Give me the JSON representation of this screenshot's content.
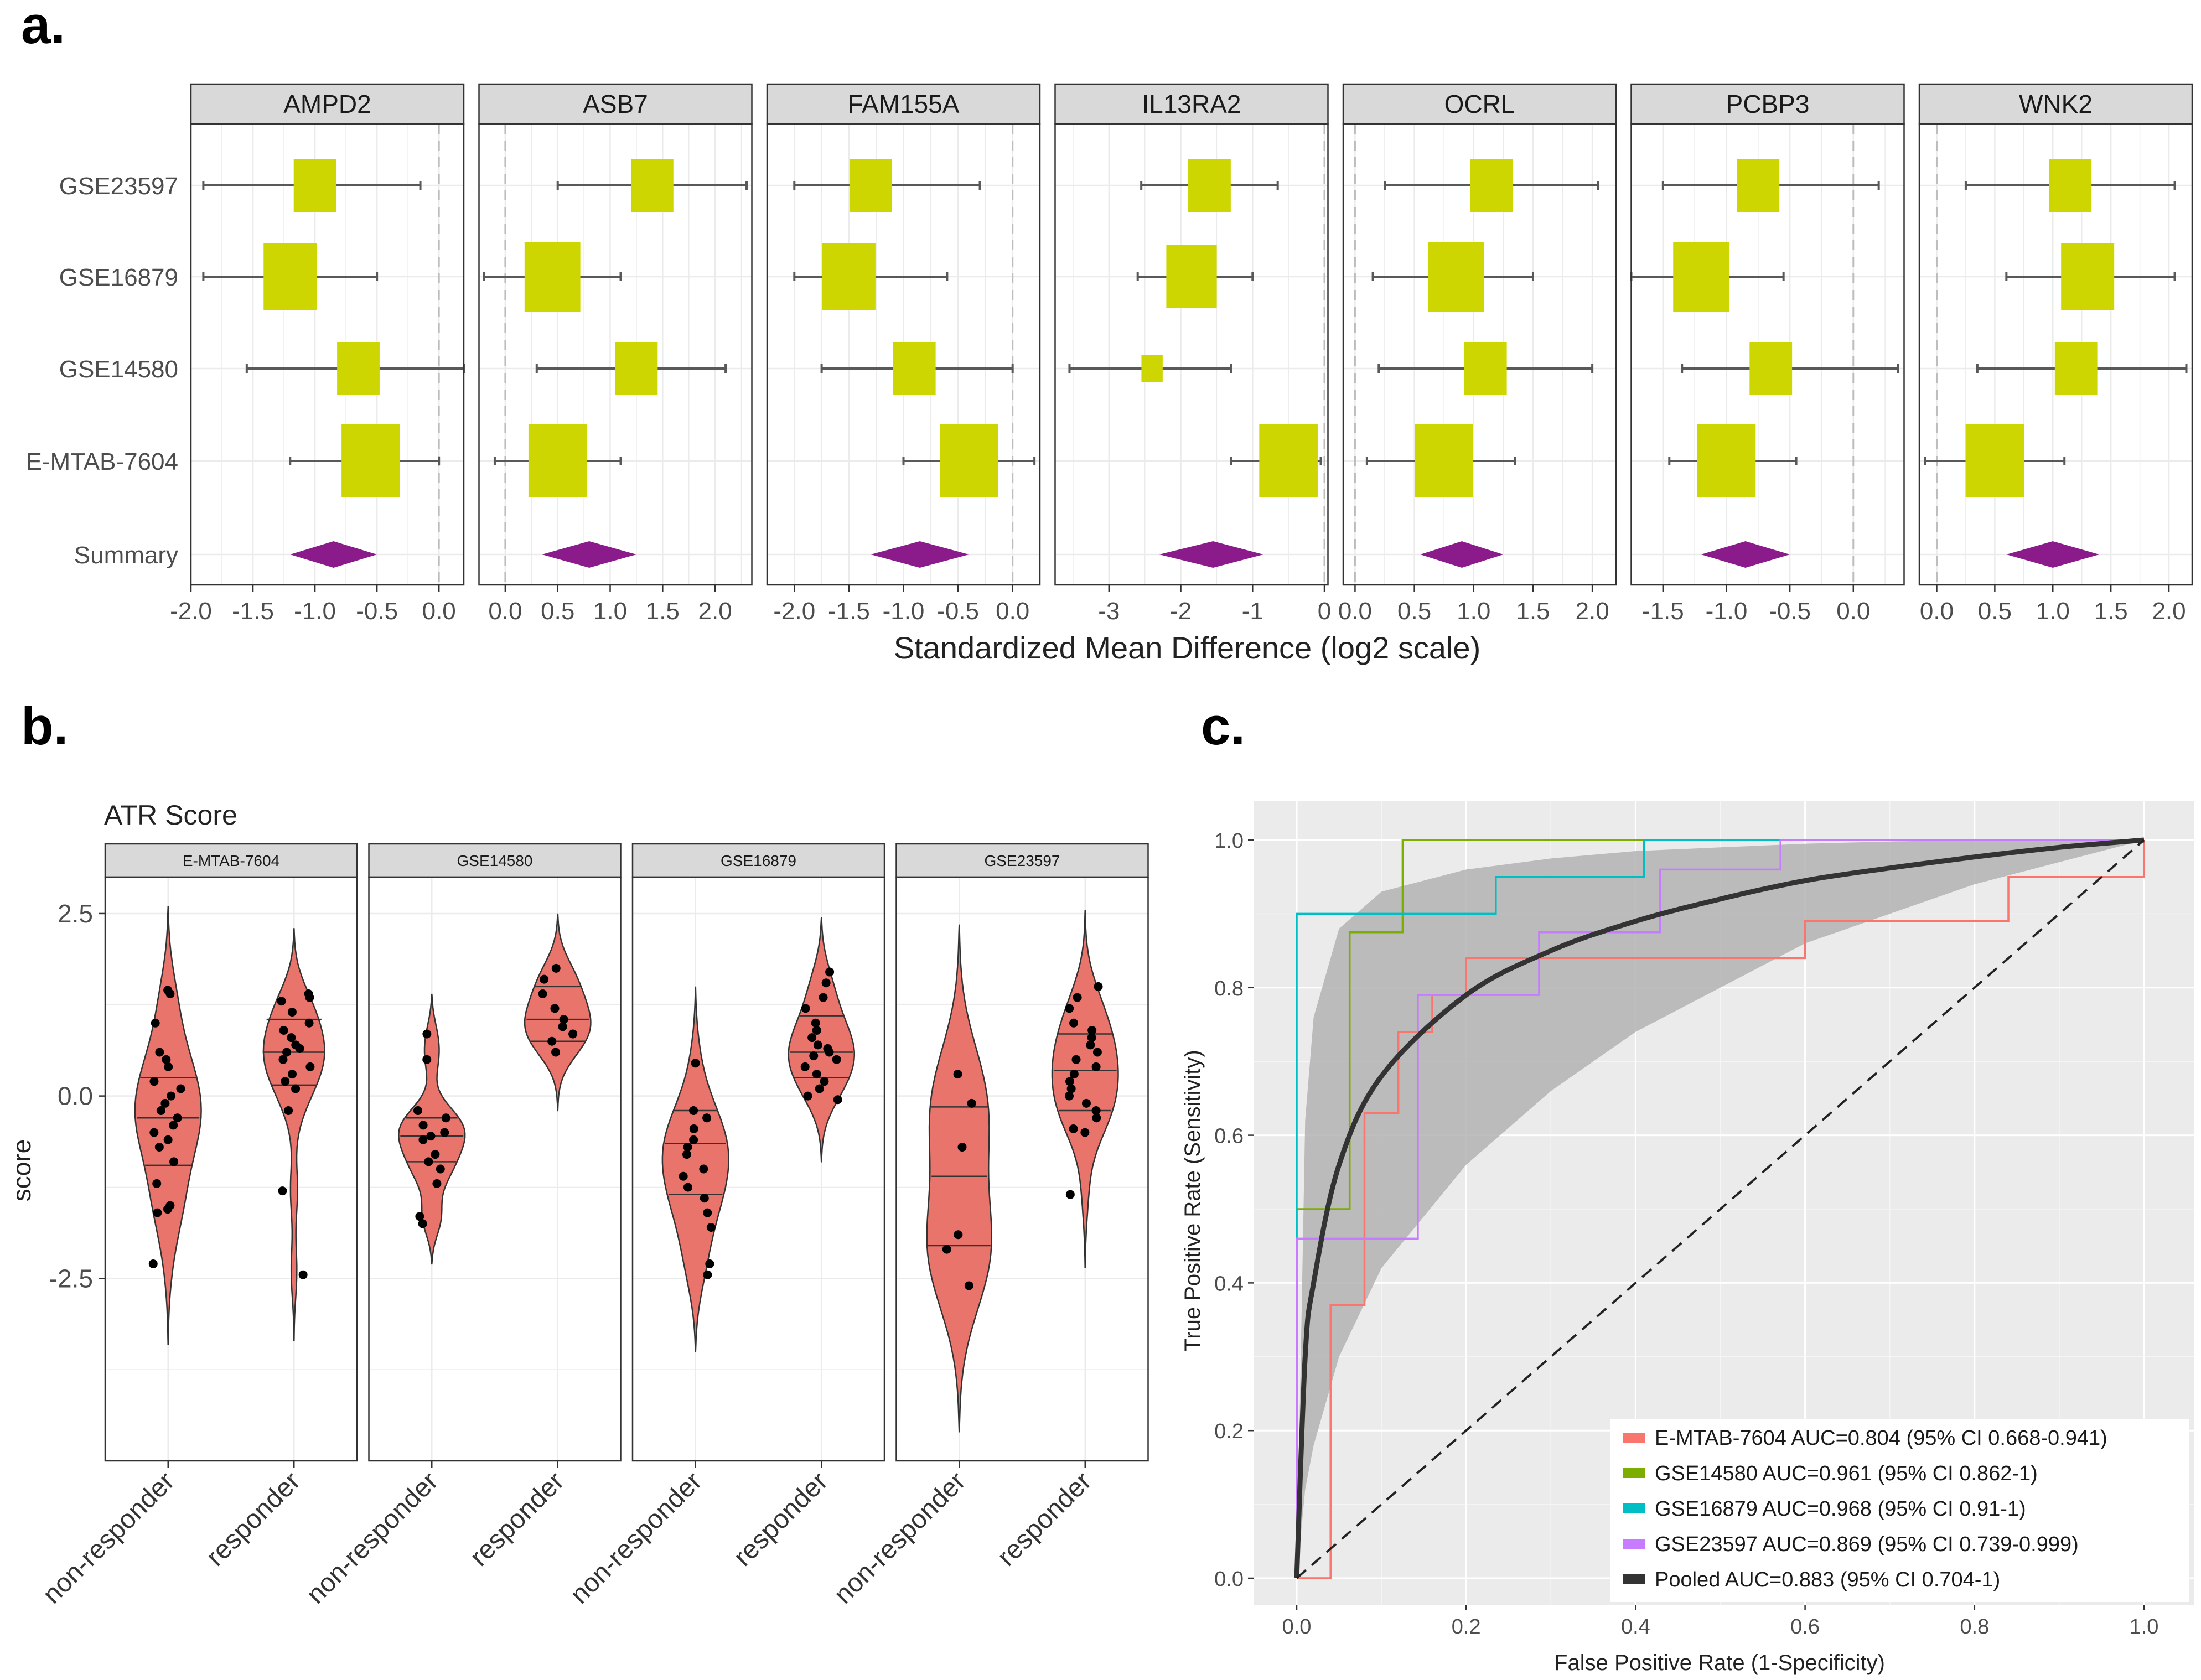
{
  "colors": {
    "square": "#cdd600",
    "diamond": "#8b1a8b",
    "violin": "#e8746c",
    "strip": "#d9d9d9",
    "roc_panel_bg": "#ebebeb",
    "ci_band": "#b3b3b3",
    "series_emtab": "#f8766d",
    "series_gse14580": "#7cae00",
    "series_gse16879": "#00bfc4",
    "series_gse23597": "#c77cff",
    "series_pooled": "#333333"
  },
  "panel_a": {
    "letter": "a.",
    "xlabel": "Standardized Mean Difference (log2 scale)",
    "rows": [
      "GSE23597",
      "GSE16879",
      "GSE14580",
      "E-MTAB-7604",
      "Summary"
    ]
  },
  "panel_b": {
    "letter": "b.",
    "title": "ATR Score",
    "ylabel": "score"
  },
  "panel_c": {
    "letter": "c.",
    "xlabel": "False Positive Rate (1-Specificity)",
    "ylabel": "True Positive Rate (Sensitivity)"
  },
  "chart_data": [
    {
      "type": "forest",
      "title": "",
      "xlabel": "Standardized Mean Difference (log2 scale)",
      "rows": [
        "GSE23597",
        "GSE16879",
        "GSE14580",
        "E-MTAB-7604",
        "Summary"
      ],
      "facets": [
        {
          "name": "AMPD2",
          "xlim": [
            -2.0,
            0.2
          ],
          "ticks": [
            -2.0,
            -1.5,
            -1.0,
            -0.5,
            0.0
          ],
          "tick_labels": [
            "-2.0",
            "-1.5",
            "-1.0",
            "-0.5",
            "0.0"
          ],
          "studies": [
            {
              "est": -1.0,
              "lo": -1.9,
              "hi": -0.15,
              "weight": 0.8
            },
            {
              "est": -1.2,
              "lo": -1.9,
              "hi": -0.5,
              "weight": 1.0
            },
            {
              "est": -0.65,
              "lo": -1.55,
              "hi": 0.2,
              "weight": 0.8
            },
            {
              "est": -0.55,
              "lo": -1.2,
              "hi": 0.0,
              "weight": 1.1
            }
          ],
          "summary": {
            "est": -0.85,
            "lo": -1.2,
            "hi": -0.5
          }
        },
        {
          "name": "ASB7",
          "xlim": [
            -0.25,
            2.35
          ],
          "ticks": [
            0.0,
            0.5,
            1.0,
            1.5,
            2.0
          ],
          "tick_labels": [
            "0.0",
            "0.5",
            "1.0",
            "1.5",
            "2.0"
          ],
          "studies": [
            {
              "est": 1.4,
              "lo": 0.5,
              "hi": 2.3,
              "weight": 0.8
            },
            {
              "est": 0.45,
              "lo": -0.2,
              "hi": 1.1,
              "weight": 1.05
            },
            {
              "est": 1.25,
              "lo": 0.3,
              "hi": 2.1,
              "weight": 0.8
            },
            {
              "est": 0.5,
              "lo": -0.1,
              "hi": 1.1,
              "weight": 1.1
            }
          ],
          "summary": {
            "est": 0.8,
            "lo": 0.35,
            "hi": 1.25
          }
        },
        {
          "name": "FAM155A",
          "xlim": [
            -2.25,
            0.25
          ],
          "ticks": [
            -2.0,
            -1.5,
            -1.0,
            -0.5,
            0.0
          ],
          "tick_labels": [
            "-2.0",
            "-1.5",
            "-1.0",
            "-0.5",
            "0.0"
          ],
          "studies": [
            {
              "est": -1.3,
              "lo": -2.0,
              "hi": -0.3,
              "weight": 0.8
            },
            {
              "est": -1.5,
              "lo": -2.0,
              "hi": -0.6,
              "weight": 1.0
            },
            {
              "est": -0.9,
              "lo": -1.75,
              "hi": 0.0,
              "weight": 0.8
            },
            {
              "est": -0.4,
              "lo": -1.0,
              "hi": 0.2,
              "weight": 1.1
            }
          ],
          "summary": {
            "est": -0.85,
            "lo": -1.3,
            "hi": -0.4
          }
        },
        {
          "name": "IL13RA2",
          "xlim": [
            -3.75,
            0.05
          ],
          "ticks": [
            -3,
            -2,
            -1,
            0
          ],
          "tick_labels": [
            "-3",
            "-2",
            "-1",
            "0"
          ],
          "studies": [
            {
              "est": -1.6,
              "lo": -2.55,
              "hi": -0.65,
              "weight": 0.8
            },
            {
              "est": -1.85,
              "lo": -2.6,
              "hi": -1.0,
              "weight": 0.95
            },
            {
              "est": -2.4,
              "lo": -3.55,
              "hi": -1.3,
              "weight": 0.4
            },
            {
              "est": -0.5,
              "lo": -1.3,
              "hi": -0.05,
              "weight": 1.1
            }
          ],
          "summary": {
            "est": -1.55,
            "lo": -2.3,
            "hi": -0.85
          }
        },
        {
          "name": "OCRL",
          "xlim": [
            -0.1,
            2.2
          ],
          "ticks": [
            0.0,
            0.5,
            1.0,
            1.5,
            2.0
          ],
          "tick_labels": [
            "0.0",
            "0.5",
            "1.0",
            "1.5",
            "2.0"
          ],
          "studies": [
            {
              "est": 1.15,
              "lo": 0.25,
              "hi": 2.05,
              "weight": 0.8
            },
            {
              "est": 0.85,
              "lo": 0.15,
              "hi": 1.5,
              "weight": 1.05
            },
            {
              "est": 1.1,
              "lo": 0.2,
              "hi": 2.0,
              "weight": 0.8
            },
            {
              "est": 0.75,
              "lo": 0.1,
              "hi": 1.35,
              "weight": 1.1
            }
          ],
          "summary": {
            "est": 0.9,
            "lo": 0.55,
            "hi": 1.25
          }
        },
        {
          "name": "PCBP3",
          "xlim": [
            -1.75,
            0.4
          ],
          "ticks": [
            -1.5,
            -1.0,
            -0.5,
            0.0
          ],
          "tick_labels": [
            "-1.5",
            "-1.0",
            "-0.5",
            "0.0"
          ],
          "studies": [
            {
              "est": -0.75,
              "lo": -1.5,
              "hi": 0.2,
              "weight": 0.8
            },
            {
              "est": -1.2,
              "lo": -1.75,
              "hi": -0.55,
              "weight": 1.05
            },
            {
              "est": -0.65,
              "lo": -1.35,
              "hi": 0.35,
              "weight": 0.8
            },
            {
              "est": -1.0,
              "lo": -1.45,
              "hi": -0.45,
              "weight": 1.1
            }
          ],
          "summary": {
            "est": -0.85,
            "lo": -1.2,
            "hi": -0.5
          }
        },
        {
          "name": "WNK2",
          "xlim": [
            -0.15,
            2.2
          ],
          "ticks": [
            0.0,
            0.5,
            1.0,
            1.5,
            2.0
          ],
          "tick_labels": [
            "0.0",
            "0.5",
            "1.0",
            "1.5",
            "2.0"
          ],
          "studies": [
            {
              "est": 1.15,
              "lo": 0.25,
              "hi": 2.05,
              "weight": 0.8
            },
            {
              "est": 1.3,
              "lo": 0.6,
              "hi": 2.05,
              "weight": 1.0
            },
            {
              "est": 1.2,
              "lo": 0.35,
              "hi": 2.15,
              "weight": 0.8
            },
            {
              "est": 0.5,
              "lo": -0.1,
              "hi": 1.1,
              "weight": 1.1
            }
          ],
          "summary": {
            "est": 1.0,
            "lo": 0.6,
            "hi": 1.4
          }
        }
      ]
    },
    {
      "type": "violin",
      "title": "ATR Score",
      "xlabel": "",
      "ylabel": "score",
      "ylim": [
        -5.0,
        3.0
      ],
      "yticks": [
        2.5,
        0.0,
        -2.5
      ],
      "ytick_labels": [
        "2.5",
        "0.0",
        "-2.5"
      ],
      "categories": [
        "non-responder",
        "responder"
      ],
      "facets": [
        {
          "name": "E-MTAB-7604",
          "groups": [
            {
              "category": "non-responder",
              "min": -3.4,
              "max": 2.6,
              "quartiles": [
                -0.95,
                -0.3,
                0.25
              ],
              "points": [
                1.45,
                1.4,
                1.0,
                0.6,
                0.5,
                0.4,
                0.2,
                0.1,
                0.0,
                -0.1,
                -0.2,
                -0.3,
                -0.4,
                -0.5,
                -0.6,
                -0.7,
                -0.9,
                -1.2,
                -1.5,
                -1.55,
                -1.6,
                -2.3
              ]
            },
            {
              "category": "responder",
              "min": -3.35,
              "max": 2.3,
              "quartiles": [
                0.15,
                0.6,
                1.05
              ],
              "points": [
                1.4,
                1.35,
                1.3,
                1.15,
                1.0,
                0.9,
                0.8,
                0.7,
                0.65,
                0.6,
                0.5,
                0.4,
                0.3,
                0.2,
                0.1,
                -0.2,
                -1.3,
                -2.45
              ]
            }
          ]
        },
        {
          "name": "GSE14580",
          "groups": [
            {
              "category": "non-responder",
              "min": -2.3,
              "max": 1.4,
              "quartiles": [
                -0.9,
                -0.55,
                -0.3
              ],
              "points": [
                0.85,
                0.5,
                -0.2,
                -0.3,
                -0.4,
                -0.5,
                -0.55,
                -0.6,
                -0.8,
                -0.9,
                -1.0,
                -1.2,
                -1.65,
                -1.75
              ]
            },
            {
              "category": "responder",
              "min": -0.2,
              "max": 2.5,
              "quartiles": [
                0.75,
                1.05,
                1.5
              ],
              "points": [
                1.75,
                1.6,
                1.4,
                1.2,
                1.05,
                0.95,
                0.85,
                0.75,
                0.6
              ]
            }
          ]
        },
        {
          "name": "GSE16879",
          "groups": [
            {
              "category": "non-responder",
              "min": -3.5,
              "max": 1.5,
              "quartiles": [
                -1.35,
                -0.65,
                -0.2
              ],
              "points": [
                0.45,
                -0.2,
                -0.3,
                -0.45,
                -0.6,
                -0.7,
                -0.8,
                -1.0,
                -1.1,
                -1.25,
                -1.4,
                -1.6,
                -1.8,
                -2.3,
                -2.45
              ]
            },
            {
              "category": "responder",
              "min": -0.9,
              "max": 2.45,
              "quartiles": [
                0.25,
                0.6,
                1.1
              ],
              "points": [
                1.7,
                1.55,
                1.35,
                1.2,
                1.0,
                0.9,
                0.8,
                0.7,
                0.65,
                0.6,
                0.55,
                0.5,
                0.4,
                0.3,
                0.2,
                0.1,
                0.0,
                -0.05
              ]
            }
          ]
        },
        {
          "name": "GSE23597",
          "groups": [
            {
              "category": "non-responder",
              "min": -4.6,
              "max": 2.35,
              "quartiles": [
                -2.05,
                -1.1,
                -0.15
              ],
              "points": [
                0.3,
                -0.1,
                -0.7,
                -1.9,
                -2.1,
                -2.6
              ]
            },
            {
              "category": "responder",
              "min": -2.35,
              "max": 2.55,
              "quartiles": [
                -0.2,
                0.35,
                0.85
              ],
              "points": [
                1.5,
                1.35,
                1.2,
                1.0,
                0.9,
                0.8,
                0.7,
                0.6,
                0.5,
                0.4,
                0.3,
                0.2,
                0.1,
                0.0,
                -0.1,
                -0.2,
                -0.3,
                -0.45,
                -0.5,
                -1.35
              ]
            }
          ]
        }
      ]
    },
    {
      "type": "line",
      "title": "",
      "xlabel": "False Positive Rate (1-Specificity)",
      "ylabel": "True Positive Rate (Sensitivity)",
      "xlim": [
        0,
        1
      ],
      "ylim": [
        0,
        1
      ],
      "xticks": [
        0.0,
        0.2,
        0.4,
        0.6,
        0.8,
        1.0
      ],
      "xtick_labels": [
        "0.0",
        "0.2",
        "0.4",
        "0.6",
        "0.8",
        "1.0"
      ],
      "yticks": [
        0.0,
        0.2,
        0.4,
        0.6,
        0.8,
        1.0
      ],
      "ytick_labels": [
        "0.0",
        "0.2",
        "0.4",
        "0.6",
        "0.8",
        "1.0"
      ],
      "grid": true,
      "legend": "bottom-right",
      "series": [
        {
          "name": "E-MTAB-7604 AUC=0.804 (95% CI 0.668-0.941)",
          "color": "#f8766d",
          "style": "step",
          "x": [
            0,
            0.04,
            0.04,
            0.08,
            0.08,
            0.12,
            0.12,
            0.16,
            0.16,
            0.2,
            0.2,
            0.6,
            0.6,
            0.84,
            0.84,
            1.0,
            1.0
          ],
          "y": [
            0,
            0,
            0.37,
            0.37,
            0.63,
            0.63,
            0.74,
            0.74,
            0.79,
            0.79,
            0.84,
            0.84,
            0.89,
            0.89,
            0.95,
            0.95,
            1.0
          ]
        },
        {
          "name": "GSE14580 AUC=0.961 (95% CI 0.862-1)",
          "color": "#7cae00",
          "style": "step",
          "x": [
            0,
            0,
            0.0625,
            0.0625,
            0.125,
            0.125,
            1.0
          ],
          "y": [
            0,
            0.5,
            0.5,
            0.875,
            0.875,
            1.0,
            1.0
          ]
        },
        {
          "name": "GSE16879 AUC=0.968 (95% CI 0.91-1)",
          "color": "#00bfc4",
          "style": "step",
          "x": [
            0,
            0,
            0.235,
            0.235,
            0.41,
            0.41,
            1.0
          ],
          "y": [
            0,
            0.9,
            0.9,
            0.95,
            0.95,
            1.0,
            1.0
          ]
        },
        {
          "name": "GSE23597 AUC=0.869 (95% CI 0.739-0.999)",
          "color": "#c77cff",
          "style": "step",
          "x": [
            0,
            0,
            0.143,
            0.143,
            0.286,
            0.286,
            0.429,
            0.429,
            0.571,
            0.571,
            1.0
          ],
          "y": [
            0,
            0.46,
            0.46,
            0.79,
            0.79,
            0.875,
            0.875,
            0.96,
            0.96,
            1.0,
            1.0
          ]
        },
        {
          "name": "Pooled AUC=0.883 (95% CI 0.704-1)",
          "color": "#333333",
          "style": "smooth",
          "x": [
            0,
            0.01,
            0.02,
            0.05,
            0.1,
            0.2,
            0.3,
            0.4,
            0.5,
            0.6,
            0.7,
            0.8,
            0.9,
            1.0
          ],
          "y": [
            0,
            0.3,
            0.4,
            0.56,
            0.68,
            0.79,
            0.85,
            0.89,
            0.92,
            0.945,
            0.962,
            0.977,
            0.99,
            1.0
          ]
        },
        {
          "name": "reference",
          "color": "#222222",
          "style": "dashed",
          "x": [
            0,
            1
          ],
          "y": [
            0,
            1
          ]
        }
      ],
      "ci_band": {
        "x": [
          0,
          0.01,
          0.02,
          0.05,
          0.1,
          0.2,
          0.3,
          0.4,
          0.5,
          0.6,
          0.7,
          0.8,
          0.9,
          1.0
        ],
        "lower": [
          0,
          0.12,
          0.18,
          0.3,
          0.42,
          0.56,
          0.66,
          0.74,
          0.8,
          0.86,
          0.9,
          0.94,
          0.97,
          1.0
        ],
        "upper": [
          0,
          0.62,
          0.76,
          0.88,
          0.93,
          0.96,
          0.975,
          0.985,
          0.99,
          0.995,
          0.998,
          1.0,
          1.0,
          1.0
        ]
      }
    }
  ]
}
